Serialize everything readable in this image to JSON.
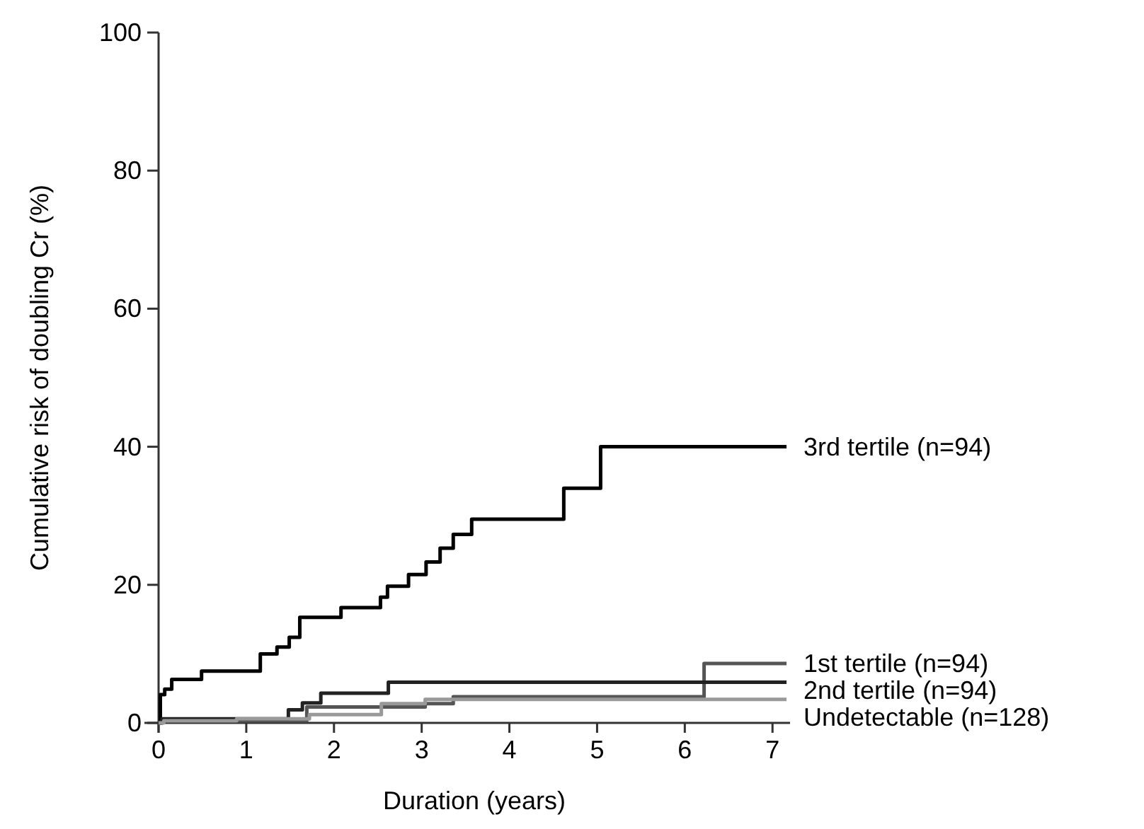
{
  "chart_data": {
    "type": "step",
    "xlabel": "Duration (years)",
    "ylabel": "Cumulative risk of doubling Cr (%)",
    "xlim": [
      0,
      7.2
    ],
    "ylim": [
      0,
      100
    ],
    "xticks": [
      0,
      1,
      2,
      3,
      4,
      5,
      6,
      7
    ],
    "yticks": [
      0,
      20,
      40,
      60,
      80,
      100
    ],
    "grid": false,
    "legend": false,
    "marker": "none",
    "line_style": "solid",
    "series": [
      {
        "name": "3rd tertile (n=94)",
        "color": "#000000",
        "x": [
          0,
          0.02,
          0.07,
          0.15,
          0.49,
          1.16,
          1.35,
          1.49,
          1.61,
          2.08,
          2.53,
          2.61,
          2.85,
          3.05,
          3.21,
          3.36,
          3.57,
          4.62,
          5.04,
          7.16
        ],
        "values": [
          0,
          4.1,
          4.9,
          6.3,
          7.5,
          10,
          11,
          12.4,
          15.3,
          16.7,
          18.2,
          19.8,
          21.5,
          23.3,
          25.3,
          27.3,
          29.5,
          34,
          40,
          40
        ]
      },
      {
        "name": "1st tertile (n=94)",
        "color": "#555555",
        "x": [
          0,
          0.04,
          1.69,
          3.04,
          3.36,
          6.22,
          7.16
        ],
        "values": [
          0,
          0.3,
          2.3,
          2.8,
          3.8,
          8.6,
          8.6
        ]
      },
      {
        "name": "2nd tertile (n=94)",
        "color": "#222222",
        "x": [
          0,
          0.04,
          1.48,
          1.64,
          1.85,
          2.62,
          7.16
        ],
        "values": [
          0,
          0.6,
          1.9,
          2.9,
          4.3,
          5.9,
          5.9
        ]
      },
      {
        "name": "Undetectable (n=128)",
        "color": "#999999",
        "x": [
          0,
          0.06,
          0.89,
          1.72,
          2.54,
          3.04,
          7.16
        ],
        "values": [
          0,
          0.3,
          0.6,
          1.2,
          2.8,
          3.4,
          3.4
        ]
      }
    ]
  }
}
